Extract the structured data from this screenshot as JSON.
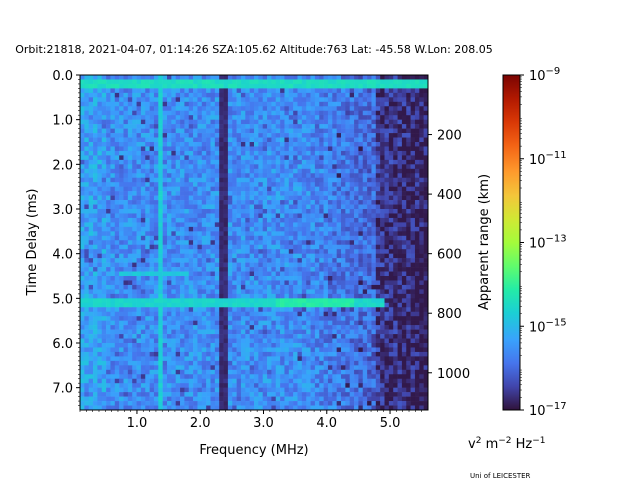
{
  "chart_data": {
    "type": "heatmap",
    "title": "Orbit:21818, 2021-04-07, 01:14:26 SZA:105.62 Altitude:763 Lat: -45.58 W.Lon: 208.05",
    "xlabel": "Frequency (MHz)",
    "ylabel": "Time Delay (ms)",
    "y2label": "Apparent range (km)",
    "xlim": [
      0.1,
      5.6
    ],
    "ylim": [
      7.5,
      0.0
    ],
    "y2lim": [
      0,
      1125
    ],
    "x_ticks": [
      {
        "value": 1.0,
        "label": "1.0"
      },
      {
        "value": 2.0,
        "label": "2.0"
      },
      {
        "value": 3.0,
        "label": "3.0"
      },
      {
        "value": 4.0,
        "label": "4.0"
      },
      {
        "value": 5.0,
        "label": "5.0"
      }
    ],
    "y_ticks": [
      {
        "value": 0.0,
        "label": "0.0"
      },
      {
        "value": 1.0,
        "label": "1.0"
      },
      {
        "value": 2.0,
        "label": "2.0"
      },
      {
        "value": 3.0,
        "label": "3.0"
      },
      {
        "value": 4.0,
        "label": "4.0"
      },
      {
        "value": 5.0,
        "label": "5.0"
      },
      {
        "value": 6.0,
        "label": "6.0"
      },
      {
        "value": 7.0,
        "label": "7.0"
      }
    ],
    "y2_ticks": [
      {
        "value": 200,
        "label": "200"
      },
      {
        "value": 400,
        "label": "400"
      },
      {
        "value": 600,
        "label": "600"
      },
      {
        "value": 800,
        "label": "800"
      },
      {
        "value": 1000,
        "label": "1000"
      }
    ],
    "colorbar": {
      "colormap": "turbo",
      "scale": "log",
      "range_exp": [
        -17,
        -9
      ],
      "ticks": [
        {
          "exp": -9,
          "label": "10",
          "sup": "−9"
        },
        {
          "exp": -11,
          "label": "10",
          "sup": "−11"
        },
        {
          "exp": -13,
          "label": "10",
          "sup": "−13"
        },
        {
          "exp": -15,
          "label": "10",
          "sup": "−15"
        },
        {
          "exp": -17,
          "label": "10",
          "sup": "−17"
        }
      ],
      "units": {
        "v": "v",
        "v_sup": "2",
        "m": " m",
        "m_sup": "−2",
        "hz": " Hz",
        "hz_sup": "−1"
      }
    },
    "features": {
      "surface_echo_delay_ms": 5.1,
      "top_echo_delay_ms": 0.2,
      "vertical_streaks_mhz": [
        1.35,
        2.37
      ],
      "grid": false
    }
  },
  "footer": {
    "credit": "Uni of LEICESTER"
  }
}
